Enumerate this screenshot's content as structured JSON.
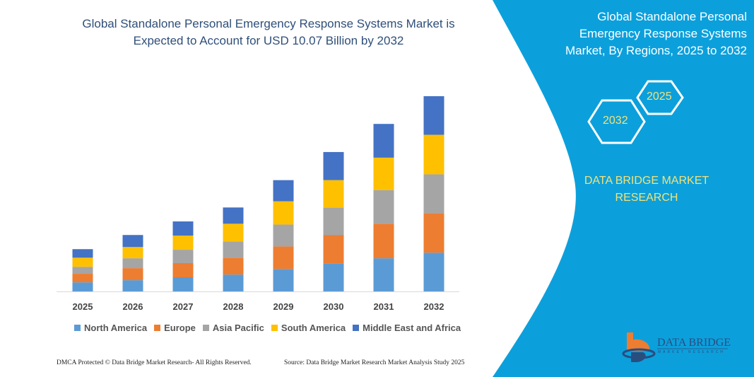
{
  "header": {
    "title_line1": "Global Standalone Personal Emergency Response Systems Market is",
    "title_line2": "Expected to Account for USD 10.07 Billion by 2032"
  },
  "side_panel": {
    "title_line1": "Global Standalone Personal",
    "title_line2": "Emergency Response Systems",
    "title_line3": "Market, By Regions, 2025 to 2032",
    "hex_start": "2025",
    "hex_end": "2032",
    "brand_line1": "DATA BRIDGE MARKET",
    "brand_line2": "RESEARCH",
    "logo_name": "DATA BRIDGE",
    "logo_sub": "MARKET RESEARCH",
    "panel_color": "#0ba0dc",
    "accent_text_color": "#f2e27a"
  },
  "footer": {
    "left": "DMCA Protected © Data Bridge Market Research-  All Rights Reserved.",
    "right": "Source: Data Bridge Market Research  Market Analysis Study 2025"
  },
  "chart_data": {
    "type": "bar",
    "stacked": true,
    "title": "Global Standalone Personal Emergency Response Systems Market is Expected to Account for USD 10.07 Billion by 2032",
    "xlabel": "",
    "ylabel": "",
    "grid": false,
    "legend_position": "bottom",
    "categories": [
      "2025",
      "2026",
      "2027",
      "2028",
      "2029",
      "2030",
      "2031",
      "2032"
    ],
    "series": [
      {
        "name": "North America",
        "color": "#5b9bd5",
        "values": [
          0.47,
          0.58,
          0.73,
          0.87,
          1.16,
          1.45,
          1.71,
          2.0
        ]
      },
      {
        "name": "Europe",
        "color": "#ed7d31",
        "values": [
          0.44,
          0.62,
          0.73,
          0.87,
          1.16,
          1.45,
          1.78,
          2.04
        ]
      },
      {
        "name": "Asia Pacific",
        "color": "#a5a5a5",
        "values": [
          0.36,
          0.51,
          0.69,
          0.84,
          1.13,
          1.42,
          1.74,
          2.0
        ]
      },
      {
        "name": "South America",
        "color": "#ffc000",
        "values": [
          0.47,
          0.58,
          0.73,
          0.91,
          1.2,
          1.42,
          1.67,
          2.04
        ]
      },
      {
        "name": "Middle East and Africa",
        "color": "#4472c4",
        "values": [
          0.44,
          0.62,
          0.73,
          0.84,
          1.09,
          1.45,
          1.74,
          1.99
        ]
      }
    ],
    "ylim": [
      0,
      10.07
    ]
  }
}
